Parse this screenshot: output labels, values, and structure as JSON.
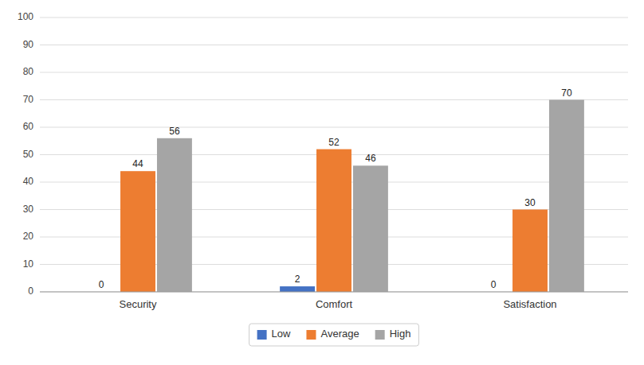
{
  "chart_data": {
    "type": "bar",
    "categories": [
      "Security",
      "Comfort",
      "Satisfaction"
    ],
    "series": [
      {
        "name": "Low",
        "color": "#4472C4",
        "values": [
          0,
          2,
          0
        ]
      },
      {
        "name": "Average",
        "color": "#ED7D31",
        "values": [
          44,
          52,
          30
        ]
      },
      {
        "name": "High",
        "color": "#A5A5A5",
        "values": [
          56,
          46,
          70
        ]
      }
    ],
    "ylim": [
      0,
      100
    ],
    "yticks": [
      0,
      10,
      20,
      30,
      40,
      50,
      60,
      70,
      80,
      90,
      100
    ],
    "grid": true,
    "legend": "bottom",
    "data_labels": true
  }
}
